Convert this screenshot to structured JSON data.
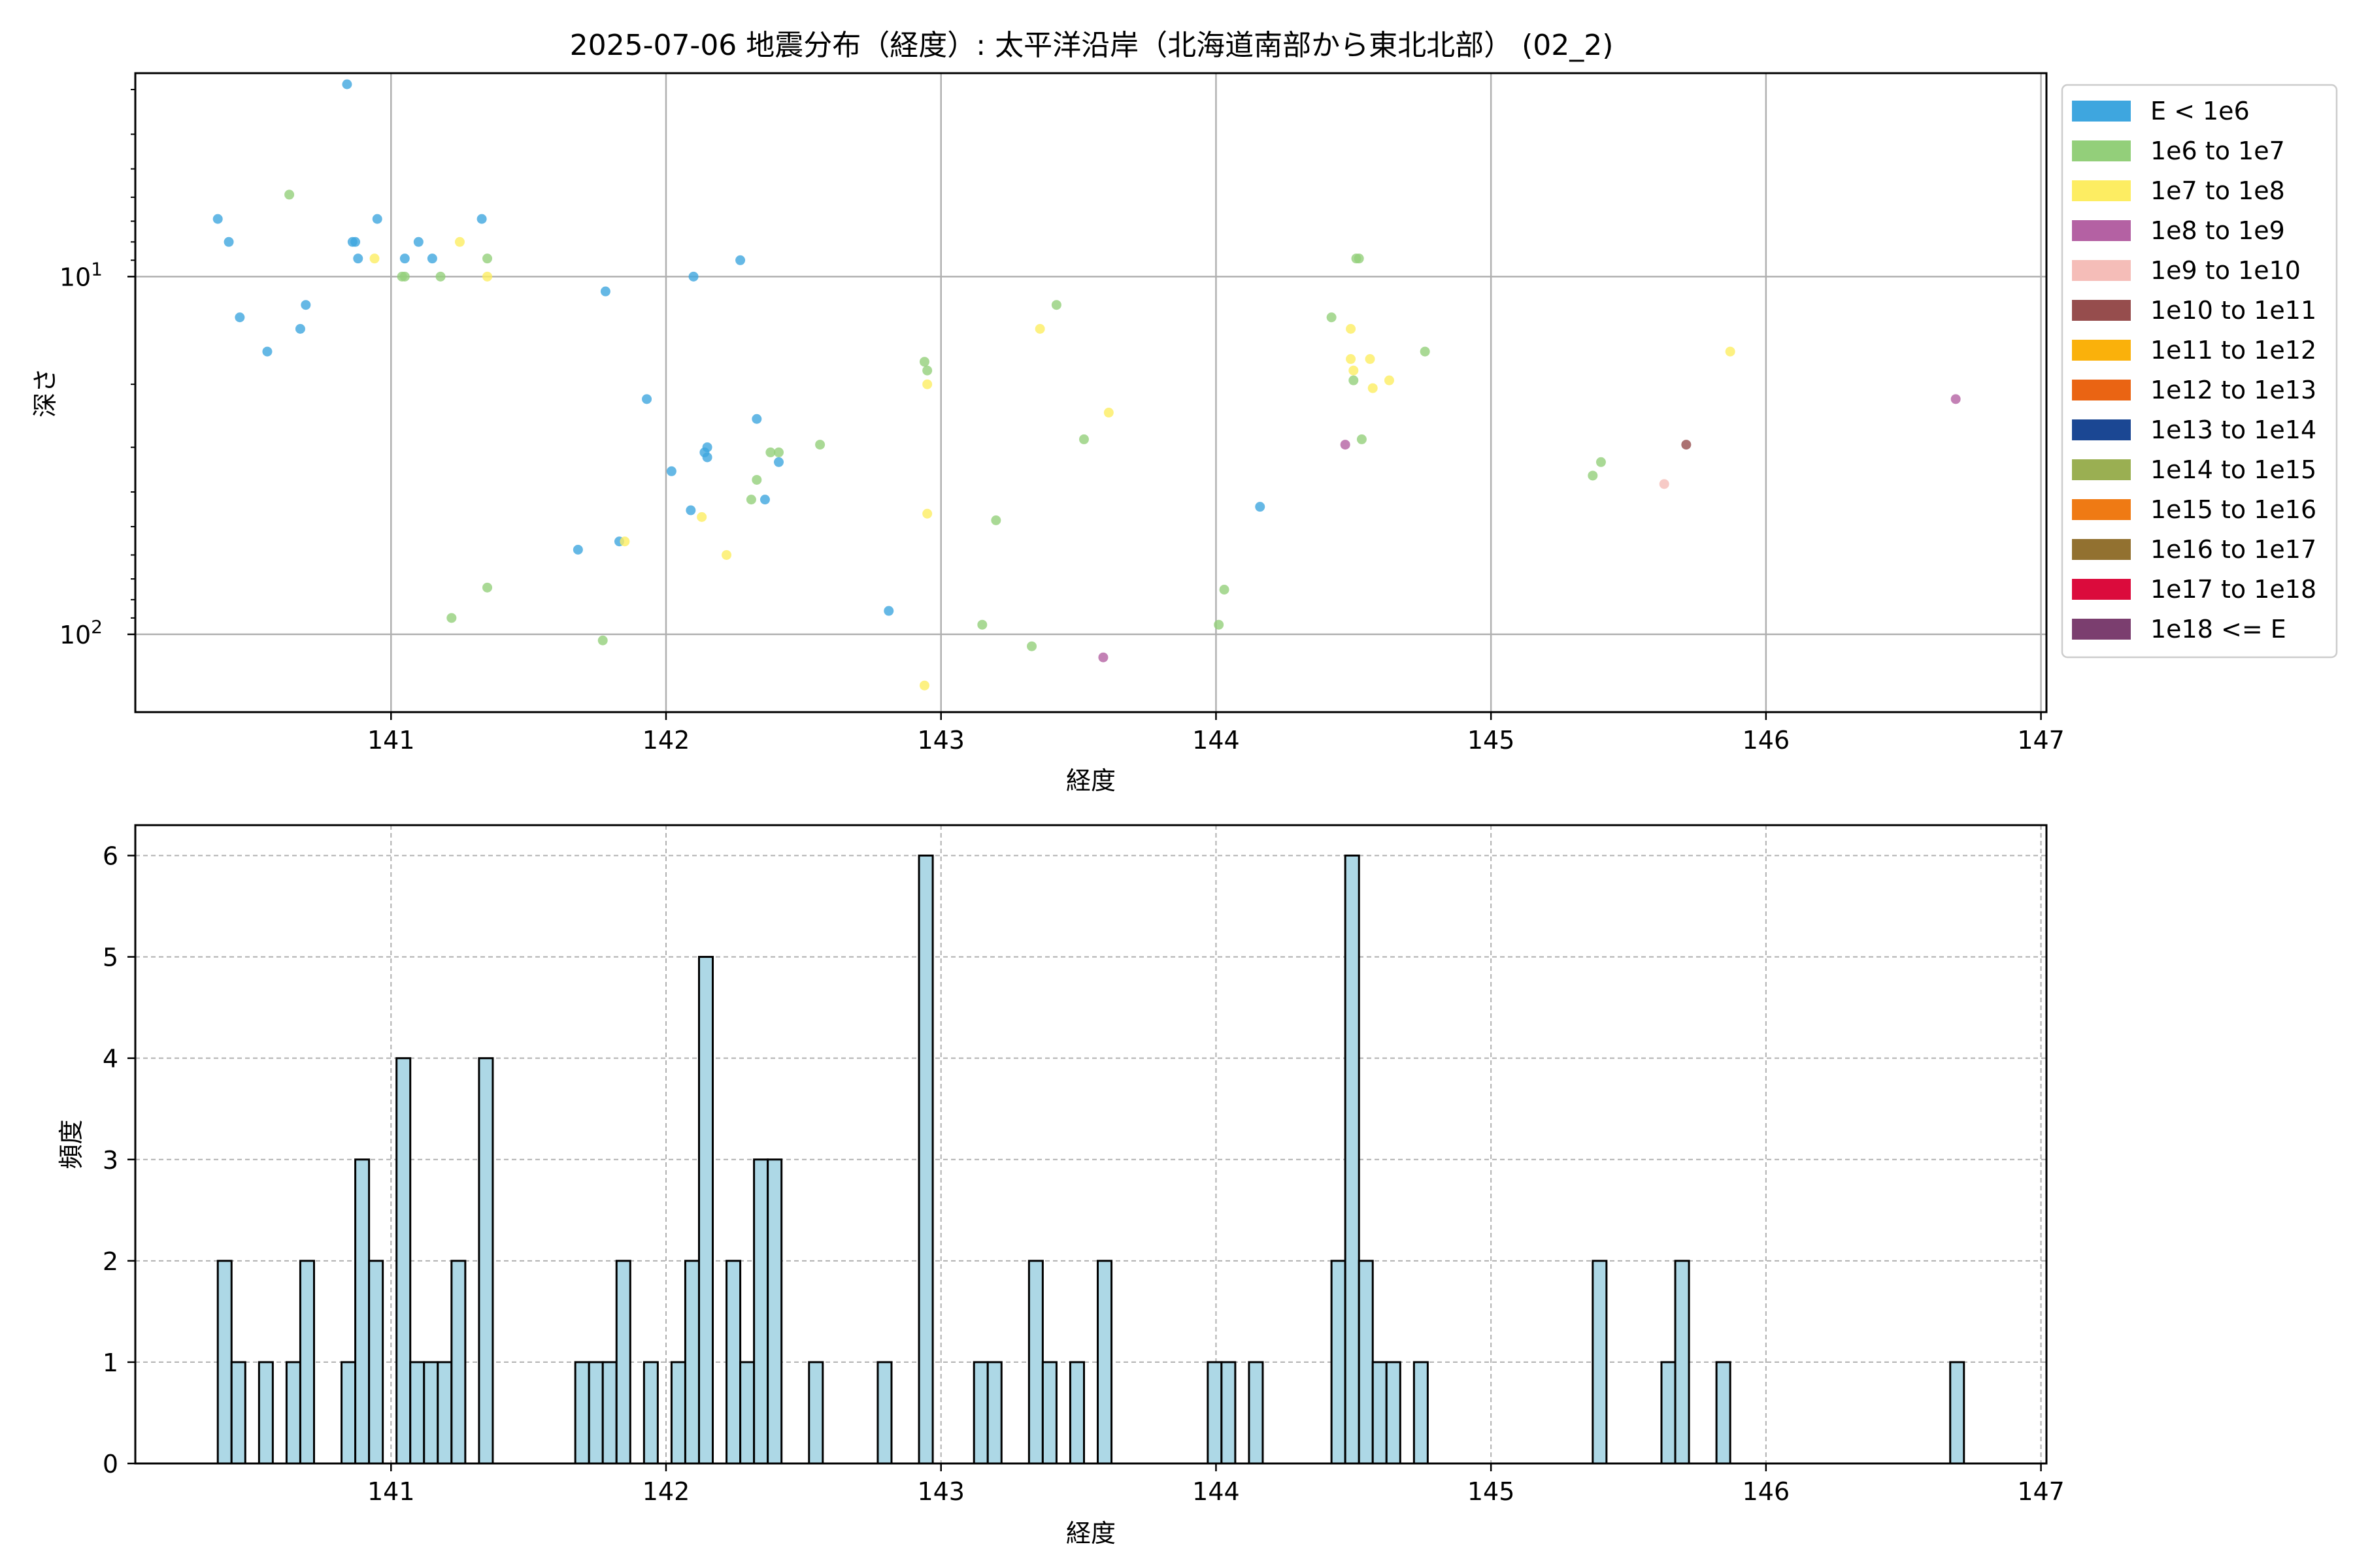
{
  "title": "2025-07-06 地震分布（経度）: 太平洋沿岸（北海道南部から東北北部） (02_2)",
  "chart_data": [
    {
      "type": "scatter",
      "xlabel": "経度",
      "ylabel": "深さ",
      "xlim": [
        140.07,
        147.02
      ],
      "ylim": [
        165,
        2.7
      ],
      "y_scale": "log (inverted)",
      "x_ticks": [
        141,
        142,
        143,
        144,
        145,
        146,
        147
      ],
      "y_ticks": [
        {
          "value": 10,
          "label": "10^1"
        },
        {
          "value": 100,
          "label": "10^2"
        }
      ],
      "y_tick_labels": {
        "base": "10",
        "exp1": "1",
        "exp2": "2"
      },
      "grid": true,
      "legend_position": "outside right",
      "legend": [
        {
          "label": "E < 1e6",
          "color": "#3ea6df"
        },
        {
          "label": "1e6 to 1e7",
          "color": "#93cf7a"
        },
        {
          "label": "1e7 to 1e8",
          "color": "#fded62"
        },
        {
          "label": "1e8 to 1e9",
          "color": "#b461a3"
        },
        {
          "label": "1e9 to 1e10",
          "color": "#f5bdb8"
        },
        {
          "label": "1e10 to 1e11",
          "color": "#964d4d"
        },
        {
          "label": "1e11 to 1e12",
          "color": "#fab10b"
        },
        {
          "label": "1e12 to 1e13",
          "color": "#ea6413"
        },
        {
          "label": "1e13 to 1e14",
          "color": "#1b4793"
        },
        {
          "label": "1e14 to 1e15",
          "color": "#9aaf52"
        },
        {
          "label": "1e15 to 1e16",
          "color": "#ef7a14"
        },
        {
          "label": "1e16 to 1e17",
          "color": "#927130"
        },
        {
          "label": "1e17 to 1e18",
          "color": "#db0b3c"
        },
        {
          "label": "1e18 <= E",
          "color": "#7b3e6f"
        }
      ],
      "points": [
        [
          140.37,
          6.9,
          0
        ],
        [
          140.41,
          8.0,
          0
        ],
        [
          140.45,
          13.0,
          0
        ],
        [
          140.55,
          16.2,
          0
        ],
        [
          140.63,
          5.9,
          1
        ],
        [
          140.67,
          14.0,
          0
        ],
        [
          140.69,
          12.0,
          0
        ],
        [
          140.84,
          2.9,
          0
        ],
        [
          140.86,
          8.0,
          0
        ],
        [
          140.87,
          8.0,
          0
        ],
        [
          140.88,
          8.9,
          0
        ],
        [
          140.94,
          8.9,
          2
        ],
        [
          140.95,
          6.9,
          0
        ],
        [
          141.04,
          10.0,
          1
        ],
        [
          141.05,
          10.0,
          1
        ],
        [
          141.05,
          8.9,
          0
        ],
        [
          141.1,
          8.0,
          0
        ],
        [
          141.15,
          8.9,
          0
        ],
        [
          141.18,
          10.0,
          1
        ],
        [
          141.22,
          90.0,
          1
        ],
        [
          141.25,
          8.0,
          2
        ],
        [
          141.33,
          6.9,
          0
        ],
        [
          141.35,
          8.9,
          1
        ],
        [
          141.35,
          10.0,
          2
        ],
        [
          141.35,
          74.0,
          1
        ],
        [
          141.68,
          58.0,
          0
        ],
        [
          141.77,
          104.0,
          1
        ],
        [
          141.78,
          11.0,
          0
        ],
        [
          141.83,
          55.0,
          0
        ],
        [
          141.85,
          55.0,
          2
        ],
        [
          141.93,
          22.0,
          0
        ],
        [
          142.02,
          35.0,
          0
        ],
        [
          142.09,
          45.0,
          0
        ],
        [
          142.1,
          10.0,
          0
        ],
        [
          142.13,
          47.0,
          2
        ],
        [
          142.14,
          31.0,
          0
        ],
        [
          142.15,
          30.0,
          0
        ],
        [
          142.15,
          32.0,
          0
        ],
        [
          142.22,
          60.0,
          2
        ],
        [
          142.27,
          9.0,
          0
        ],
        [
          142.31,
          42.0,
          1
        ],
        [
          142.33,
          25.0,
          0
        ],
        [
          142.33,
          37.0,
          1
        ],
        [
          142.36,
          42.0,
          0
        ],
        [
          142.38,
          31.0,
          1
        ],
        [
          142.41,
          31.0,
          1
        ],
        [
          142.41,
          33.0,
          0
        ],
        [
          142.56,
          29.5,
          1
        ],
        [
          142.81,
          86.0,
          0
        ],
        [
          142.94,
          139.0,
          2
        ],
        [
          142.94,
          17.3,
          1
        ],
        [
          142.95,
          18.3,
          1
        ],
        [
          142.95,
          20.0,
          2
        ],
        [
          142.95,
          46.0,
          2
        ],
        [
          143.15,
          94.0,
          1
        ],
        [
          143.2,
          48.0,
          1
        ],
        [
          143.33,
          108.0,
          1
        ],
        [
          143.36,
          14.0,
          2
        ],
        [
          143.42,
          12.0,
          1
        ],
        [
          143.52,
          28.5,
          1
        ],
        [
          143.59,
          116.0,
          3
        ],
        [
          143.61,
          24.0,
          2
        ],
        [
          144.01,
          94.0,
          1
        ],
        [
          144.03,
          75.0,
          1
        ],
        [
          144.16,
          44.0,
          0
        ],
        [
          144.42,
          13.0,
          1
        ],
        [
          144.47,
          29.5,
          3
        ],
        [
          144.49,
          14.0,
          2
        ],
        [
          144.49,
          17.0,
          2
        ],
        [
          144.5,
          18.3,
          2
        ],
        [
          144.5,
          19.5,
          1
        ],
        [
          144.51,
          8.9,
          1
        ],
        [
          144.52,
          8.9,
          1
        ],
        [
          144.53,
          28.5,
          1
        ],
        [
          144.56,
          17.0,
          2
        ],
        [
          144.57,
          20.5,
          2
        ],
        [
          144.63,
          19.5,
          2
        ],
        [
          144.76,
          16.2,
          1
        ],
        [
          145.37,
          36.0,
          1
        ],
        [
          145.4,
          33.0,
          1
        ],
        [
          145.63,
          38.0,
          4
        ],
        [
          145.71,
          29.5,
          5
        ],
        [
          145.87,
          16.2,
          2
        ],
        [
          146.69,
          22.0,
          3
        ]
      ]
    },
    {
      "type": "bar",
      "xlabel": "経度",
      "ylabel": "頻度",
      "xlim": [
        140.07,
        147.02
      ],
      "ylim": [
        0,
        6.3
      ],
      "x_ticks": [
        141,
        142,
        143,
        144,
        145,
        146,
        147
      ],
      "y_ticks": [
        0,
        1,
        2,
        3,
        4,
        5,
        6
      ],
      "grid": true,
      "bin_width": 0.05,
      "bins": [
        [
          140.37,
          2
        ],
        [
          140.42,
          1
        ],
        [
          140.52,
          1
        ],
        [
          140.62,
          1
        ],
        [
          140.67,
          2
        ],
        [
          140.82,
          1
        ],
        [
          140.87,
          3
        ],
        [
          140.92,
          2
        ],
        [
          141.02,
          4
        ],
        [
          141.07,
          1
        ],
        [
          141.12,
          1
        ],
        [
          141.17,
          1
        ],
        [
          141.22,
          2
        ],
        [
          141.32,
          4
        ],
        [
          141.67,
          1
        ],
        [
          141.72,
          1
        ],
        [
          141.77,
          1
        ],
        [
          141.82,
          2
        ],
        [
          141.92,
          1
        ],
        [
          142.02,
          1
        ],
        [
          142.07,
          2
        ],
        [
          142.12,
          5
        ],
        [
          142.22,
          2
        ],
        [
          142.27,
          1
        ],
        [
          142.32,
          3
        ],
        [
          142.37,
          3
        ],
        [
          142.52,
          1
        ],
        [
          142.77,
          1
        ],
        [
          142.92,
          6
        ],
        [
          143.12,
          1
        ],
        [
          143.17,
          1
        ],
        [
          143.32,
          2
        ],
        [
          143.37,
          1
        ],
        [
          143.47,
          1
        ],
        [
          143.57,
          2
        ],
        [
          143.97,
          1
        ],
        [
          144.02,
          1
        ],
        [
          144.12,
          1
        ],
        [
          144.42,
          2
        ],
        [
          144.47,
          6
        ],
        [
          144.52,
          2
        ],
        [
          144.57,
          1
        ],
        [
          144.62,
          1
        ],
        [
          144.72,
          1
        ],
        [
          145.37,
          2
        ],
        [
          145.62,
          1
        ],
        [
          145.67,
          2
        ],
        [
          145.82,
          1
        ],
        [
          146.67,
          1
        ]
      ]
    }
  ]
}
